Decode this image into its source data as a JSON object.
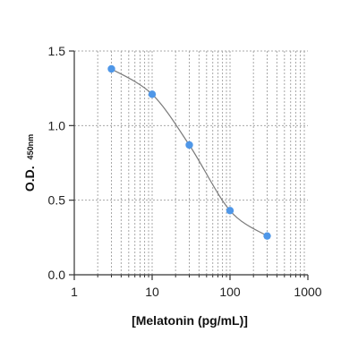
{
  "chart_data": {
    "type": "scatter",
    "title": "",
    "xlabel": "[Melatonin (pg/mL)]",
    "ylabel_main": "O.D.",
    "ylabel_sub": "450nm",
    "x_scale": "log",
    "xlim": [
      1,
      1000
    ],
    "ylim": [
      0,
      1.5
    ],
    "x_ticks": [
      1,
      10,
      100,
      1000
    ],
    "x_tick_labels": [
      "1",
      "10",
      "100",
      "1000"
    ],
    "y_ticks": [
      0,
      0.5,
      1.0,
      1.5
    ],
    "y_tick_labels": [
      "0.0",
      "0.5",
      "1.0",
      "1.5"
    ],
    "grid": true,
    "series": [
      {
        "x": [
          3,
          10,
          30,
          100,
          300
        ],
        "y": [
          1.38,
          1.21,
          0.87,
          0.43,
          0.26
        ],
        "marker_color": "#4f97e8",
        "fit_line": true,
        "line_color": "#7a7a7a"
      }
    ]
  }
}
